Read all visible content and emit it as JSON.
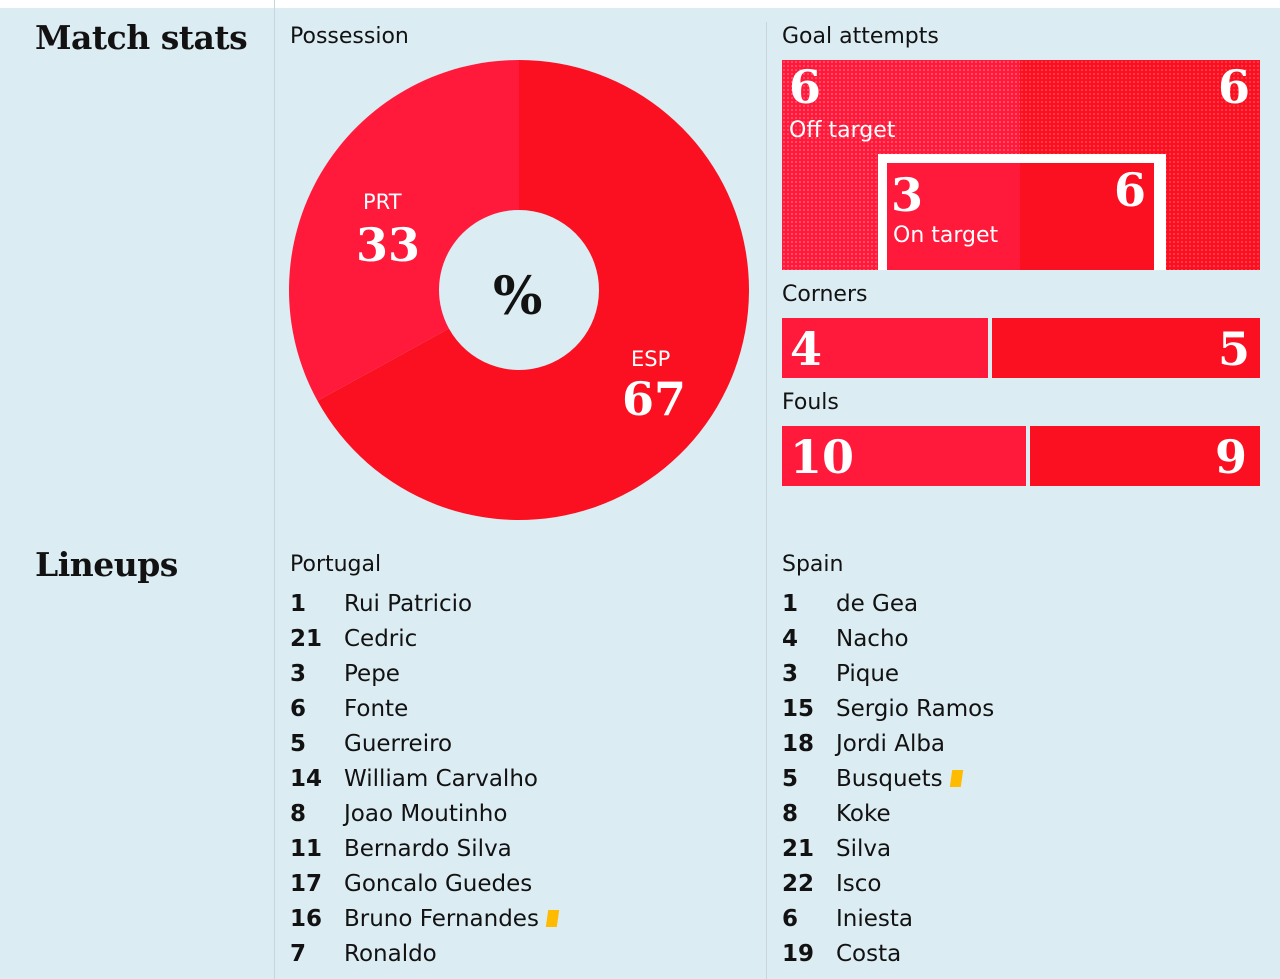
{
  "sections": {
    "match_stats_title": "Match stats",
    "lineups_title": "Lineups"
  },
  "colors": {
    "background": "#dcecf3",
    "portugal": "#ff1a3c",
    "spain": "#fa1020",
    "yellow_card": "#ffbb00"
  },
  "chart_data": [
    {
      "type": "pie",
      "title": "Possession",
      "center_label": "%",
      "slices": [
        {
          "label": "PRT",
          "value": 33
        },
        {
          "label": "ESP",
          "value": 67
        }
      ]
    },
    {
      "type": "bar",
      "title": "Goal attempts",
      "off_target": {
        "label": "Off target",
        "portugal": 6,
        "spain": 6
      },
      "on_target": {
        "label": "On target",
        "portugal": 3,
        "spain": 6
      }
    },
    {
      "type": "bar",
      "title": "Corners",
      "portugal": 4,
      "spain": 5
    },
    {
      "type": "bar",
      "title": "Fouls",
      "portugal": 10,
      "spain": 9
    }
  ],
  "lineups": {
    "portugal": {
      "team": "Portugal",
      "players": [
        {
          "number": "1",
          "name": "Rui Patricio"
        },
        {
          "number": "21",
          "name": "Cedric"
        },
        {
          "number": "3",
          "name": "Pepe"
        },
        {
          "number": "6",
          "name": "Fonte"
        },
        {
          "number": "5",
          "name": "Guerreiro"
        },
        {
          "number": "14",
          "name": "William Carvalho"
        },
        {
          "number": "8",
          "name": "Joao Moutinho"
        },
        {
          "number": "11",
          "name": "Bernardo Silva"
        },
        {
          "number": "17",
          "name": "Goncalo Guedes"
        },
        {
          "number": "16",
          "name": "Bruno Fernandes",
          "yellow_card": true
        },
        {
          "number": "7",
          "name": "Ronaldo"
        }
      ]
    },
    "spain": {
      "team": "Spain",
      "players": [
        {
          "number": "1",
          "name": "de Gea"
        },
        {
          "number": "4",
          "name": "Nacho"
        },
        {
          "number": "3",
          "name": "Pique"
        },
        {
          "number": "15",
          "name": "Sergio Ramos"
        },
        {
          "number": "18",
          "name": "Jordi Alba"
        },
        {
          "number": "5",
          "name": "Busquets",
          "yellow_card": true
        },
        {
          "number": "8",
          "name": "Koke"
        },
        {
          "number": "21",
          "name": "Silva"
        },
        {
          "number": "22",
          "name": "Isco"
        },
        {
          "number": "6",
          "name": "Iniesta"
        },
        {
          "number": "19",
          "name": "Costa"
        }
      ]
    }
  }
}
